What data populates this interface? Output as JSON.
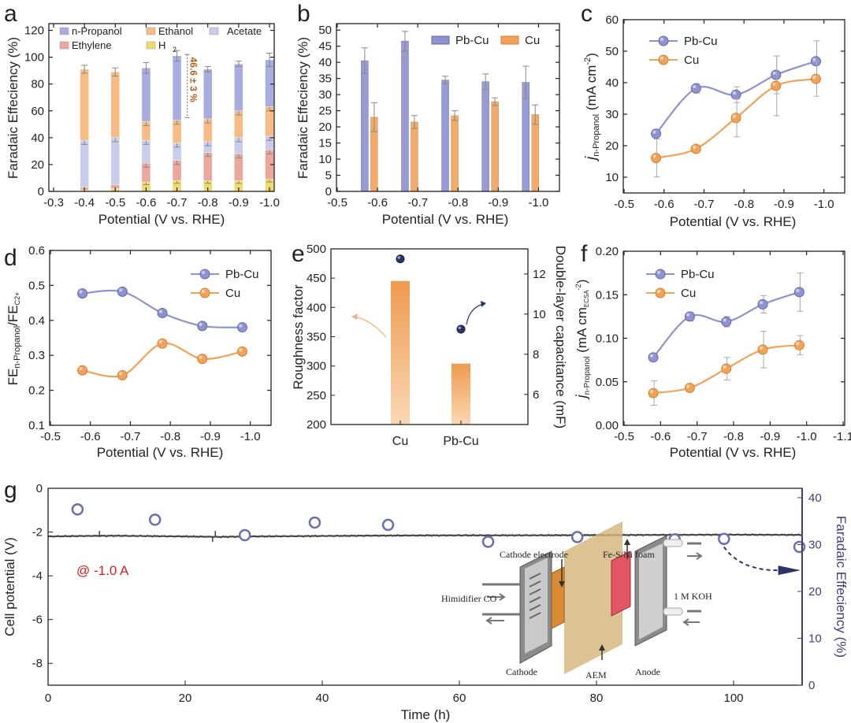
{
  "colors": {
    "pbcu": "#8f92cf",
    "pbcu_dark": "#6467b0",
    "cu": "#f0a25a",
    "cu_dark": "#d9812b",
    "npropanol": "#a9acdf",
    "ethanol": "#f7bc85",
    "acetate": "#c7cdea",
    "ethylene": "#eba79c",
    "h2": "#eedc6a",
    "navy": "#4f5190",
    "red": "#d32020"
  },
  "panels": {
    "a": {
      "letter": "a",
      "xlabel": "Potential (V vs. RHE)",
      "ylabel": "Faradaic Effeciency (%)",
      "xticks": [
        "-0.3",
        "-0.4",
        "-0.5",
        "-0.6",
        "-0.7",
        "-0.8",
        "-0.9",
        "-1.0"
      ],
      "yticks": [
        "0",
        "20",
        "40",
        "60",
        "80",
        "100",
        "120"
      ],
      "legend": {
        "npropanol": "n-Propanol",
        "ethanol": "Ethanol",
        "acetate": "Acetate",
        "ethylene": "Ethylene",
        "h2": "H"
      },
      "h2_sub": "2",
      "annotation": "46.6 ± 3 %"
    },
    "b": {
      "letter": "b",
      "xlabel": "Potential (V vs. RHE)",
      "ylabel": "Faradaic Effeciency (%)",
      "xticks": [
        "-0.5",
        "-0.6",
        "-0.7",
        "-0.8",
        "-0.9",
        "-1.0"
      ],
      "yticks": [
        "0",
        "5",
        "10",
        "15",
        "20",
        "25",
        "30",
        "35",
        "40",
        "45",
        "50"
      ],
      "legend": {
        "pbcu": "Pb-Cu",
        "cu": "Cu"
      }
    },
    "c": {
      "letter": "c",
      "xlabel": "Potential (V vs. RHE)",
      "ylabel_main": "j",
      "ylabel_sub": "n-Propanol",
      "ylabel_unit": " (mA cm",
      "ylabel_sup": "-2",
      "ylabel_close": ")",
      "xticks": [
        "-0.5",
        "-0.6",
        "-0.7",
        "-0.8",
        "-0.9",
        "-1.0"
      ],
      "yticks": [
        "10",
        "20",
        "30",
        "40",
        "50",
        "60"
      ],
      "legend": {
        "pbcu": "Pb-Cu",
        "cu": "Cu"
      }
    },
    "d": {
      "letter": "d",
      "xlabel": "Potential (V vs. RHE)",
      "ylabel_a": "FE",
      "ylabel_a_sub": "n-Propanol",
      "ylabel_b": "/FE",
      "ylabel_b_sub": "C2+",
      "xticks": [
        "-0.5",
        "-0.6",
        "-0.7",
        "-0.8",
        "-0.9",
        "-1.0"
      ],
      "yticks": [
        "0.1",
        "0.2",
        "0.3",
        "0.4",
        "0.5",
        "0.6"
      ],
      "legend": {
        "pbcu": "Pb-Cu",
        "cu": "Cu"
      }
    },
    "e": {
      "letter": "e",
      "ylabel_left": "Roughness factor",
      "ylabel_right": "Double-layer capacitance (mF)",
      "xticks": [
        "Cu",
        "Pb-Cu"
      ],
      "yticks_left": [
        "200",
        "250",
        "300",
        "350",
        "400",
        "450",
        "500"
      ],
      "yticks_right": [
        "6",
        "8",
        "10",
        "12"
      ]
    },
    "f": {
      "letter": "f",
      "xlabel": "Potential (V vs. RHE)",
      "ylabel_main": "j",
      "ylabel_sub": "n-Propanol",
      "ylabel_unit": " (mA cm",
      "ylabel_unit_sub": "ECSA",
      "ylabel_sup": "-2",
      "ylabel_close": ")",
      "xticks": [
        "-0.5",
        "-0.6",
        "-0.7",
        "-0.8",
        "-0.9",
        "-1.0",
        "-1.1"
      ],
      "yticks": [
        "0.00",
        "0.05",
        "0.10",
        "0.15",
        "0.20"
      ],
      "legend": {
        "pbcu": "Pb-Cu",
        "cu": "Cu"
      }
    },
    "g": {
      "letter": "g",
      "xlabel": "Time (h)",
      "ylabel_left": "Cell potential (V)",
      "ylabel_right": "Faradaic Effeciency (%)",
      "xticks": [
        "0",
        "20",
        "40",
        "60",
        "80",
        "100"
      ],
      "yticks_left": [
        "0",
        "-2",
        "-4",
        "-6",
        "-8"
      ],
      "yticks_right": [
        "0",
        "10",
        "20",
        "30",
        "40"
      ],
      "annotation": "@ -1.0 A",
      "schematic": {
        "cathode_electrode": "Cathode electrode",
        "fe_s": "Fe-S/Ni foam",
        "humidifier": "Himidifier CO",
        "koh": "1 M KOH",
        "cathode": "Cathode",
        "aem": "AEM",
        "anode": "Anode"
      }
    }
  },
  "chart_data": [
    {
      "panel": "a",
      "type": "bar",
      "title": "",
      "xlabel": "Potential (V vs. RHE)",
      "ylabel": "Faradaic Effeciency (%)",
      "xlim": [
        -0.3,
        -1.0
      ],
      "ylim": [
        0,
        125
      ],
      "x": [
        -0.4,
        -0.5,
        -0.6,
        -0.7,
        -0.8,
        -0.9,
        -1.0
      ],
      "stacked": true,
      "series": [
        {
          "name": "H2",
          "values": [
            1,
            2,
            7,
            8,
            8,
            8,
            9
          ],
          "errors": [
            0,
            0,
            2,
            2,
            2,
            2,
            2
          ]
        },
        {
          "name": "Ethylene",
          "values": [
            2,
            3,
            14,
            15,
            21,
            20,
            22
          ],
          "errors": [
            0,
            0,
            3,
            3,
            3,
            3,
            3
          ]
        },
        {
          "name": "Acetate",
          "values": [
            35,
            35,
            17,
            13,
            8,
            12,
            10
          ],
          "errors": [
            3,
            3,
            3,
            3,
            3,
            3,
            3
          ]
        },
        {
          "name": "Ethanol",
          "values": [
            53,
            49,
            14,
            17,
            17,
            20,
            22
          ],
          "errors": [
            3,
            3,
            3,
            3,
            3,
            3,
            3
          ]
        },
        {
          "name": "n-Propanol",
          "values": [
            0,
            0,
            40,
            48,
            37,
            35,
            35
          ],
          "errors": [
            4,
            5,
            4,
            4,
            2,
            2,
            5
          ]
        }
      ],
      "annotation": "46.6 ± 3 %"
    },
    {
      "panel": "b",
      "type": "bar",
      "title": "",
      "xlabel": "Potential (V vs. RHE)",
      "ylabel": "Faradaic Effeciency (%)",
      "xlim": [
        -0.5,
        -1.0
      ],
      "ylim": [
        0,
        52
      ],
      "x": [
        -0.58,
        -0.68,
        -0.78,
        -0.88,
        -0.98
      ],
      "series": [
        {
          "name": "Pb-Cu",
          "values": [
            40.5,
            46.6,
            34.5,
            34.0,
            33.8
          ],
          "errors": [
            4.0,
            3.0,
            1.2,
            2.4,
            5.0
          ]
        },
        {
          "name": "Cu",
          "values": [
            23.0,
            21.5,
            23.5,
            27.8,
            23.8
          ],
          "errors": [
            4.5,
            2.0,
            1.5,
            1.2,
            3.0
          ]
        }
      ]
    },
    {
      "panel": "c",
      "type": "line",
      "title": "",
      "xlabel": "Potential (V vs. RHE)",
      "ylabel": "j n-Propanol (mA cm-2)",
      "xlim": [
        -0.5,
        -1.05
      ],
      "ylim": [
        5,
        60
      ],
      "x": [
        -0.58,
        -0.68,
        -0.78,
        -0.88,
        -0.98
      ],
      "series": [
        {
          "name": "Pb-Cu",
          "values": [
            23.8,
            38.2,
            36.2,
            42.5,
            46.8
          ],
          "errors": [
            0,
            1.5,
            2.5,
            6.0,
            6.5
          ]
        },
        {
          "name": "Cu",
          "values": [
            16.1,
            19.0,
            28.8,
            39.0,
            41.2
          ],
          "errors": [
            6.0,
            0,
            6.0,
            9.5,
            5.5
          ]
        }
      ]
    },
    {
      "panel": "d",
      "type": "line",
      "title": "",
      "xlabel": "Potential (V vs. RHE)",
      "ylabel": "FE n-Propanol / FE C2+",
      "xlim": [
        -0.5,
        -1.05
      ],
      "ylim": [
        0.1,
        0.6
      ],
      "x": [
        -0.58,
        -0.68,
        -0.78,
        -0.88,
        -0.98
      ],
      "series": [
        {
          "name": "Pb-Cu",
          "values": [
            0.477,
            0.482,
            0.421,
            0.384,
            0.38
          ]
        },
        {
          "name": "Cu",
          "values": [
            0.257,
            0.243,
            0.334,
            0.29,
            0.311
          ]
        }
      ]
    },
    {
      "panel": "e",
      "type": "bar",
      "title": "",
      "ylabel": "Roughness factor",
      "ylabel_right": "Double-layer capacitance (mF)",
      "categories": [
        "Cu",
        "Pb-Cu"
      ],
      "ylim": [
        200,
        500
      ],
      "ylim_right": [
        4.5,
        13.25
      ],
      "series": [
        {
          "name": "Roughness factor",
          "values": [
            445,
            304
          ]
        },
        {
          "name": "Double-layer capacitance",
          "axis": "right",
          "values": [
            12.75,
            9.25
          ]
        }
      ]
    },
    {
      "panel": "f",
      "type": "line",
      "title": "",
      "xlabel": "Potential (V vs. RHE)",
      "ylabel": "j n-Propanol (mA cmECSA-2)",
      "xlim": [
        -0.5,
        -1.1
      ],
      "ylim": [
        0,
        0.2
      ],
      "x": [
        -0.58,
        -0.68,
        -0.78,
        -0.88,
        -0.98
      ],
      "series": [
        {
          "name": "Pb-Cu",
          "values": [
            0.078,
            0.125,
            0.119,
            0.139,
            0.153
          ],
          "errors": [
            0,
            0.005,
            0.006,
            0.01,
            0.022
          ]
        },
        {
          "name": "Cu",
          "values": [
            0.037,
            0.043,
            0.065,
            0.087,
            0.092
          ],
          "errors": [
            0.014,
            0,
            0.013,
            0.021,
            0.011
          ]
        }
      ]
    },
    {
      "panel": "g",
      "type": "line",
      "title": "",
      "xlabel": "Time (h)",
      "ylabel": "Cell potential (V)",
      "ylabel_right": "Faradaic Effeciency (%)",
      "xlim": [
        0,
        110
      ],
      "ylim": [
        0,
        -9
      ],
      "ylim_right": [
        0,
        42
      ],
      "series": [
        {
          "name": "Cell potential",
          "x": [
            0,
            5,
            10,
            20,
            25,
            30,
            40,
            50,
            60,
            70,
            80,
            90,
            100,
            110
          ],
          "values": [
            -2.2,
            -2.18,
            -2.17,
            -2.2,
            -2.22,
            -2.2,
            -2.18,
            -2.16,
            -2.15,
            -2.15,
            -2.14,
            -2.13,
            -2.12,
            -2.13
          ]
        },
        {
          "name": "Faradaic Effeciency",
          "axis": "right",
          "x": [
            4.3,
            15.6,
            28.7,
            38.9,
            49.6,
            64.2,
            77.2,
            91.4,
            98.6,
            109.6
          ],
          "values": [
            37.5,
            35.3,
            32.0,
            34.7,
            34.2,
            30.6,
            31.6,
            31.1,
            31.2,
            29.5
          ]
        }
      ],
      "annotation": "@ -1.0 A"
    }
  ]
}
